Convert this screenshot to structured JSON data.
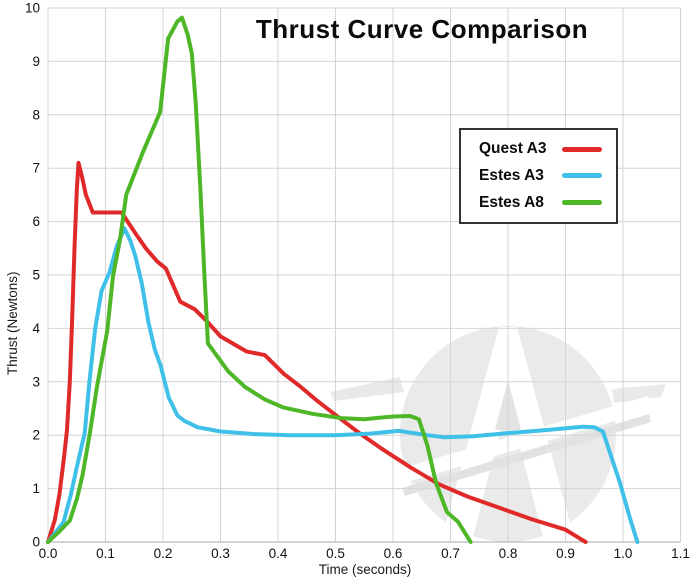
{
  "chart_data": {
    "type": "line",
    "title": "Thrust Curve Comparison",
    "xlabel": "Time (seconds)",
    "ylabel": "Thrust (Newtons)",
    "xlim": [
      0,
      1.1
    ],
    "ylim": [
      0,
      10
    ],
    "xtick_labels": [
      "0.0",
      "0.1",
      "0.2",
      "0.3",
      "0.4",
      "0.5",
      "0.6",
      "0.7",
      "0.8",
      "0.9",
      "1.0",
      "1.1"
    ],
    "ytick_labels": [
      "0",
      "1",
      "2",
      "3",
      "4",
      "5",
      "6",
      "7",
      "8",
      "9",
      "10"
    ],
    "grid": true,
    "legend": {
      "position": "upper-right"
    },
    "series": [
      {
        "name": "Quest A3",
        "color": "#e02a2a",
        "points": [
          [
            0,
            0
          ],
          [
            0.012,
            0.42
          ],
          [
            0.02,
            0.9
          ],
          [
            0.028,
            1.6
          ],
          [
            0.033,
            2.1
          ],
          [
            0.038,
            3.0
          ],
          [
            0.042,
            4.2
          ],
          [
            0.046,
            5.5
          ],
          [
            0.05,
            6.6
          ],
          [
            0.053,
            7.1
          ],
          [
            0.06,
            6.8
          ],
          [
            0.066,
            6.5
          ],
          [
            0.078,
            6.17
          ],
          [
            0.128,
            6.17
          ],
          [
            0.152,
            5.78
          ],
          [
            0.17,
            5.5
          ],
          [
            0.19,
            5.25
          ],
          [
            0.205,
            5.12
          ],
          [
            0.23,
            4.5
          ],
          [
            0.255,
            4.36
          ],
          [
            0.275,
            4.15
          ],
          [
            0.3,
            3.85
          ],
          [
            0.345,
            3.57
          ],
          [
            0.377,
            3.5
          ],
          [
            0.41,
            3.15
          ],
          [
            0.44,
            2.9
          ],
          [
            0.47,
            2.63
          ],
          [
            0.5,
            2.38
          ],
          [
            0.54,
            2.05
          ],
          [
            0.58,
            1.75
          ],
          [
            0.63,
            1.4
          ],
          [
            0.68,
            1.08
          ],
          [
            0.73,
            0.85
          ],
          [
            0.78,
            0.66
          ],
          [
            0.84,
            0.43
          ],
          [
            0.9,
            0.23
          ],
          [
            0.935,
            0
          ]
        ]
      },
      {
        "name": "Estes A3",
        "color": "#3fc0e8",
        "points": [
          [
            0,
            0
          ],
          [
            0.027,
            0.37
          ],
          [
            0.04,
            0.9
          ],
          [
            0.05,
            1.4
          ],
          [
            0.064,
            2.05
          ],
          [
            0.072,
            3.0
          ],
          [
            0.082,
            4.0
          ],
          [
            0.093,
            4.7
          ],
          [
            0.107,
            5.05
          ],
          [
            0.12,
            5.55
          ],
          [
            0.133,
            5.87
          ],
          [
            0.143,
            5.65
          ],
          [
            0.152,
            5.35
          ],
          [
            0.163,
            4.85
          ],
          [
            0.175,
            4.1
          ],
          [
            0.186,
            3.6
          ],
          [
            0.196,
            3.3
          ],
          [
            0.21,
            2.7
          ],
          [
            0.225,
            2.37
          ],
          [
            0.237,
            2.27
          ],
          [
            0.26,
            2.15
          ],
          [
            0.3,
            2.07
          ],
          [
            0.36,
            2.02
          ],
          [
            0.42,
            2.0
          ],
          [
            0.5,
            2.0
          ],
          [
            0.56,
            2.03
          ],
          [
            0.61,
            2.08
          ],
          [
            0.66,
            2.0
          ],
          [
            0.69,
            1.96
          ],
          [
            0.74,
            1.98
          ],
          [
            0.8,
            2.04
          ],
          [
            0.86,
            2.09
          ],
          [
            0.93,
            2.16
          ],
          [
            0.95,
            2.15
          ],
          [
            0.965,
            2.07
          ],
          [
            0.995,
            1.1
          ],
          [
            1.012,
            0.45
          ],
          [
            1.025,
            0
          ]
        ]
      },
      {
        "name": "Estes A8",
        "color": "#4db728",
        "points": [
          [
            0,
            0
          ],
          [
            0.02,
            0.2
          ],
          [
            0.038,
            0.4
          ],
          [
            0.05,
            0.8
          ],
          [
            0.06,
            1.25
          ],
          [
            0.073,
            2.05
          ],
          [
            0.085,
            2.9
          ],
          [
            0.103,
            3.95
          ],
          [
            0.113,
            4.98
          ],
          [
            0.125,
            5.65
          ],
          [
            0.136,
            6.5
          ],
          [
            0.165,
            7.3
          ],
          [
            0.195,
            8.05
          ],
          [
            0.209,
            9.43
          ],
          [
            0.225,
            9.75
          ],
          [
            0.233,
            9.82
          ],
          [
            0.243,
            9.5
          ],
          [
            0.25,
            9.15
          ],
          [
            0.257,
            8.2
          ],
          [
            0.265,
            6.6
          ],
          [
            0.272,
            5.0
          ],
          [
            0.278,
            3.72
          ],
          [
            0.313,
            3.2
          ],
          [
            0.343,
            2.9
          ],
          [
            0.377,
            2.67
          ],
          [
            0.409,
            2.52
          ],
          [
            0.46,
            2.4
          ],
          [
            0.51,
            2.32
          ],
          [
            0.55,
            2.3
          ],
          [
            0.6,
            2.35
          ],
          [
            0.63,
            2.36
          ],
          [
            0.645,
            2.3
          ],
          [
            0.66,
            1.8
          ],
          [
            0.675,
            1.1
          ],
          [
            0.694,
            0.56
          ],
          [
            0.713,
            0.38
          ],
          [
            0.735,
            0
          ]
        ]
      }
    ]
  },
  "watermark": {
    "icon": "apogee-rocket-a-logo"
  },
  "colors": {
    "background": "#ffffff",
    "grid": "#d4d4d4",
    "axis": "#aaaaaa",
    "text": "#111111",
    "legend_border": "#333333",
    "watermark_gray": "#eaeaea"
  }
}
